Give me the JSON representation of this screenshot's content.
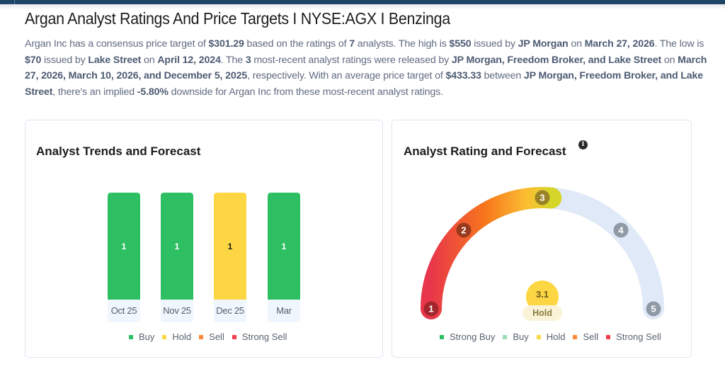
{
  "header": {
    "title": "Argan Analyst Ratings And Price Targets I NYSE:AGX I Benzinga"
  },
  "summary": {
    "p1": "Argan Inc has a consensus price target of ",
    "consensus": "$301.29",
    "p2": " based on the ratings of ",
    "analyst_count": "7",
    "p3": " analysts. The high is ",
    "high": "$550",
    "p4": " issued by ",
    "high_firm": "JP Morgan",
    "p5": " on ",
    "high_date": "March 27, 2026",
    "p6": ". The low is ",
    "low": "$70",
    "p7": " issued by ",
    "low_firm": "Lake Street",
    "p8": " on ",
    "low_date": "April 12, 2024",
    "p9": ". The ",
    "recent_count": "3",
    "p10": " most-recent analyst ratings were released by ",
    "recent_firms": "JP Morgan, Freedom Broker, and Lake Street",
    "p11": " on ",
    "recent_dates": "March 27, 2026, March 10, 2026, and December 5, 2025",
    "p12": ", respectively. With an average price target of ",
    "avg_target": "$433.33",
    "p13": " between ",
    "avg_firms": "JP Morgan, Freedom Broker, and Lake Street",
    "p14": ", there's an implied ",
    "implied": "-5.80%",
    "p15": " downside for Argan Inc from these most-recent analyst ratings."
  },
  "trends": {
    "title": "Analyst Trends and Forecast",
    "legend": [
      {
        "label": "Buy",
        "color": "#2fbf63"
      },
      {
        "label": "Hold",
        "color": "#fdd743"
      },
      {
        "label": "Sell",
        "color": "#fb8c3c"
      },
      {
        "label": "Strong Sell",
        "color": "#f03e4e"
      }
    ]
  },
  "rating": {
    "title": "Analyst Rating and Forecast",
    "info_icon": "i",
    "score": "3.1",
    "score_label": "Hold",
    "ticks": [
      "1",
      "2",
      "3",
      "4",
      "5"
    ],
    "legend": [
      {
        "label": "Strong Buy",
        "color": "#2fbf63"
      },
      {
        "label": "Buy",
        "color": "#9cdcb5"
      },
      {
        "label": "Hold",
        "color": "#fdd743"
      },
      {
        "label": "Sell",
        "color": "#fb8c3c"
      },
      {
        "label": "Strong Sell",
        "color": "#f03e4e"
      }
    ]
  },
  "chart_data": [
    {
      "type": "bar",
      "title": "Analyst Trends and Forecast",
      "categories": [
        "Oct 25",
        "Nov 25",
        "Dec 25",
        "Mar"
      ],
      "series": [
        {
          "name": "Buy",
          "values": [
            1,
            1,
            0,
            1
          ],
          "color": "#2fbf63"
        },
        {
          "name": "Hold",
          "values": [
            0,
            0,
            1,
            0
          ],
          "color": "#fdd743"
        },
        {
          "name": "Sell",
          "values": [
            0,
            0,
            0,
            0
          ],
          "color": "#fb8c3c"
        },
        {
          "name": "Strong Sell",
          "values": [
            0,
            0,
            0,
            0
          ],
          "color": "#f03e4e"
        }
      ],
      "totals": [
        1,
        1,
        1,
        1
      ],
      "data_labels": [
        "1",
        "1",
        "1",
        "1"
      ],
      "legend_position": "bottom",
      "stacked": true
    },
    {
      "type": "gauge",
      "title": "Analyst Rating and Forecast",
      "min": 1,
      "max": 5,
      "value": 3.1,
      "value_label": "Hold",
      "ticks": [
        1,
        2,
        3,
        4,
        5
      ],
      "legend_position": "bottom"
    }
  ]
}
